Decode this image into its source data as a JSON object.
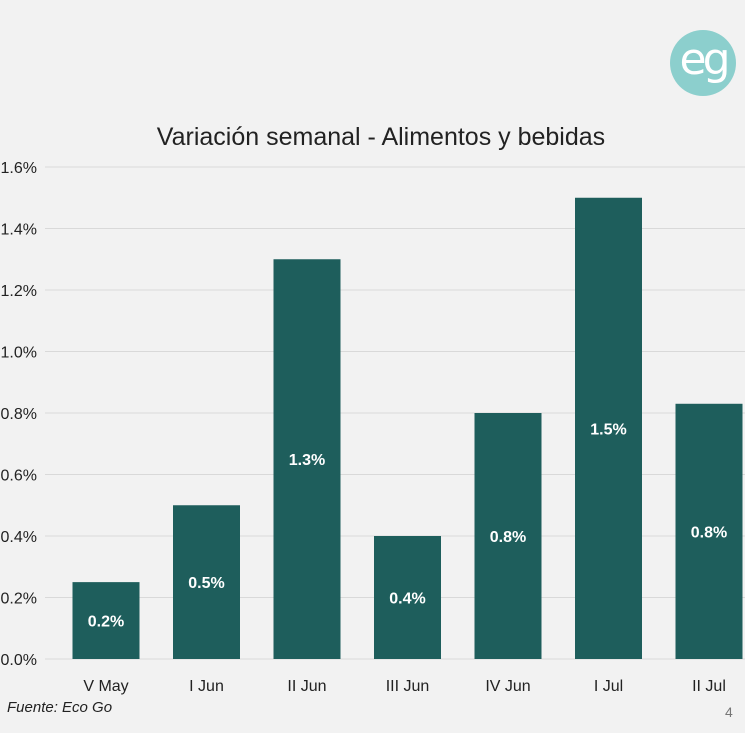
{
  "logo": {
    "text": "eg"
  },
  "chart_data": {
    "type": "bar",
    "title": "Variación semanal - Alimentos y bebidas",
    "xlabel": "",
    "ylabel": "",
    "categories": [
      "V May",
      "I Jun",
      "II Jun",
      "III Jun",
      "IV Jun",
      "I Jul",
      "II Jul"
    ],
    "values": [
      0.25,
      0.5,
      1.3,
      0.4,
      0.8,
      1.5,
      0.83
    ],
    "data_labels": [
      "0.2%",
      "0.5%",
      "1.3%",
      "0.4%",
      "0.8%",
      "1.5%",
      "0.8%"
    ],
    "yticks": [
      "0.0%",
      "0.2%",
      "0.4%",
      "0.6%",
      "0.8%",
      "1.0%",
      "1.2%",
      "1.4%",
      "1.6%"
    ],
    "ylim": [
      0,
      1.6
    ],
    "grid": true,
    "bar_color": "#1e5e5c",
    "grid_color": "#d9d9d9"
  },
  "source": "Fuente: Eco Go",
  "page_number": "4"
}
